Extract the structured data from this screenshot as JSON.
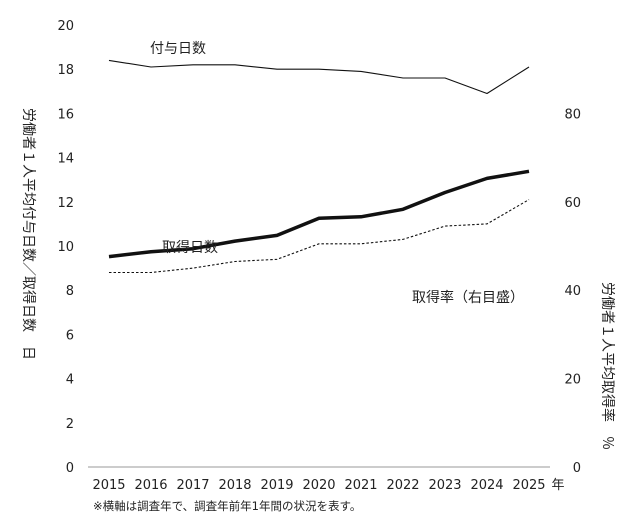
{
  "chart_data": {
    "type": "line",
    "categories": [
      "2015",
      "2016",
      "2017",
      "2018",
      "2019",
      "2020",
      "2021",
      "2022",
      "2023",
      "2024",
      "2025"
    ],
    "x_unit": "年",
    "left_axis": {
      "label": "労働者１人平均付与日数／取得日数　日",
      "ylim": [
        0,
        20
      ],
      "ticks": [
        "0",
        "2",
        "4",
        "6",
        "8",
        "10",
        "12",
        "14",
        "16",
        "18",
        "20"
      ]
    },
    "right_axis": {
      "label": "労働者１人平均取得率　％",
      "ylim": [
        0,
        100
      ],
      "ticks": [
        "0",
        "20",
        "40",
        "60",
        "80"
      ]
    },
    "series": [
      {
        "name": "付与日数",
        "axis": "left",
        "style": "solid-thin",
        "values": [
          18.4,
          18.1,
          18.2,
          18.2,
          18.0,
          18.0,
          17.9,
          17.6,
          17.6,
          16.9,
          18.1
        ]
      },
      {
        "name": "取得日数",
        "axis": "left",
        "style": "dashed",
        "values": [
          8.8,
          8.8,
          9.0,
          9.3,
          9.4,
          10.1,
          10.1,
          10.3,
          10.9,
          11.0,
          12.1
        ]
      },
      {
        "name": "取得率（右目盛）",
        "axis": "right",
        "style": "solid-thick",
        "values": [
          47.6,
          48.7,
          49.4,
          51.1,
          52.4,
          56.3,
          56.6,
          58.3,
          62.1,
          65.3,
          66.9
        ]
      }
    ],
    "note": "※横軸は調査年で、調査年前年1年間の状況を表す。"
  }
}
